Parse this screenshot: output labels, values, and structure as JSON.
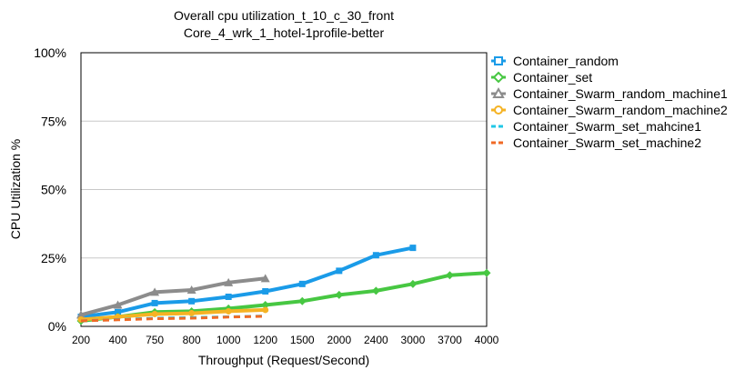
{
  "chart_data": {
    "type": "line",
    "title": "Overall cpu utilization_t_10_c_30_front",
    "subtitle": "Core_4_wrk_1_hotel-1profile-better",
    "xlabel": "Throughput (Request/Second)",
    "ylabel": "CPU Utilization %",
    "categories": [
      "200",
      "400",
      "750",
      "800",
      "1000",
      "1200",
      "1500",
      "2000",
      "2400",
      "3000",
      "3700",
      "4000"
    ],
    "yticks": [
      "0%",
      "25%",
      "50%",
      "75%",
      "100%"
    ],
    "ylim": [
      0,
      100
    ],
    "grid": "horizontal",
    "legend_position": "right",
    "series": [
      {
        "name": "Container_random",
        "color": "#1a9be8",
        "marker": "square",
        "dash": false,
        "values": [
          3.5,
          5.2,
          8.5,
          9.2,
          10.8,
          12.8,
          15.5,
          20.3,
          26.0,
          28.7,
          null,
          null
        ]
      },
      {
        "name": "Container_set",
        "color": "#47c742",
        "marker": "diamond",
        "dash": false,
        "values": [
          2.0,
          3.5,
          5.2,
          5.5,
          6.5,
          7.8,
          9.2,
          11.5,
          13.0,
          15.5,
          18.7,
          19.5
        ]
      },
      {
        "name": "Container_Swarm_random_machine1",
        "color": "#8c8c8c",
        "marker": "triangle",
        "dash": false,
        "values": [
          4.2,
          7.8,
          12.5,
          13.3,
          16.0,
          17.5,
          null,
          null,
          null,
          null,
          null,
          null
        ]
      },
      {
        "name": "Container_Swarm_random_machine2",
        "color": "#f5b324",
        "marker": "circle",
        "dash": false,
        "values": [
          2.5,
          3.5,
          4.5,
          4.8,
          5.5,
          6.0,
          null,
          null,
          null,
          null,
          null,
          null
        ]
      },
      {
        "name": "Container_Swarm_set_mahcine1",
        "color": "#21c7e6",
        "marker": "none",
        "dash": true,
        "values": [
          2.0,
          2.5,
          3.0,
          3.2,
          3.5,
          3.8,
          null,
          null,
          null,
          null,
          null,
          null
        ]
      },
      {
        "name": "Container_Swarm_set_machine2",
        "color": "#f06a26",
        "marker": "none",
        "dash": true,
        "values": [
          2.0,
          2.4,
          2.8,
          3.0,
          3.4,
          3.7,
          null,
          null,
          null,
          null,
          null,
          null
        ]
      }
    ]
  }
}
